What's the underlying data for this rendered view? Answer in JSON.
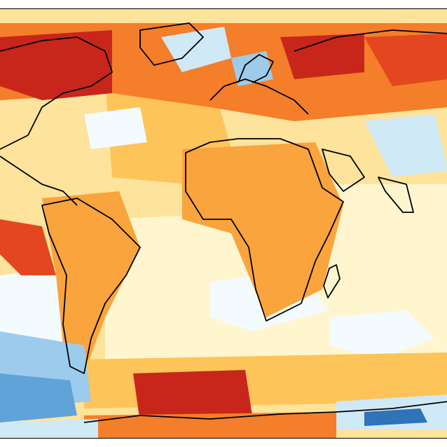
{
  "map": {
    "type": "filled-contour anomaly map",
    "projection": "equirectangular",
    "colorbar_shown": false,
    "palette": {
      "very_warm": "#c8261b",
      "warm_dark": "#e4471f",
      "warm": "#f47e2a",
      "warm_mid": "#f9a43c",
      "warm_light": "#fdc45a",
      "mild": "#fde39b",
      "neutral": "#fff6d0",
      "near_zero": "#f3fbff",
      "cool_light": "#cfe9f7",
      "cool": "#9dcbeb",
      "cool_mid": "#5fa3d8",
      "cool_dark": "#2f73b8"
    },
    "coastline_color": "#000000",
    "background_color": "#ffffff"
  }
}
